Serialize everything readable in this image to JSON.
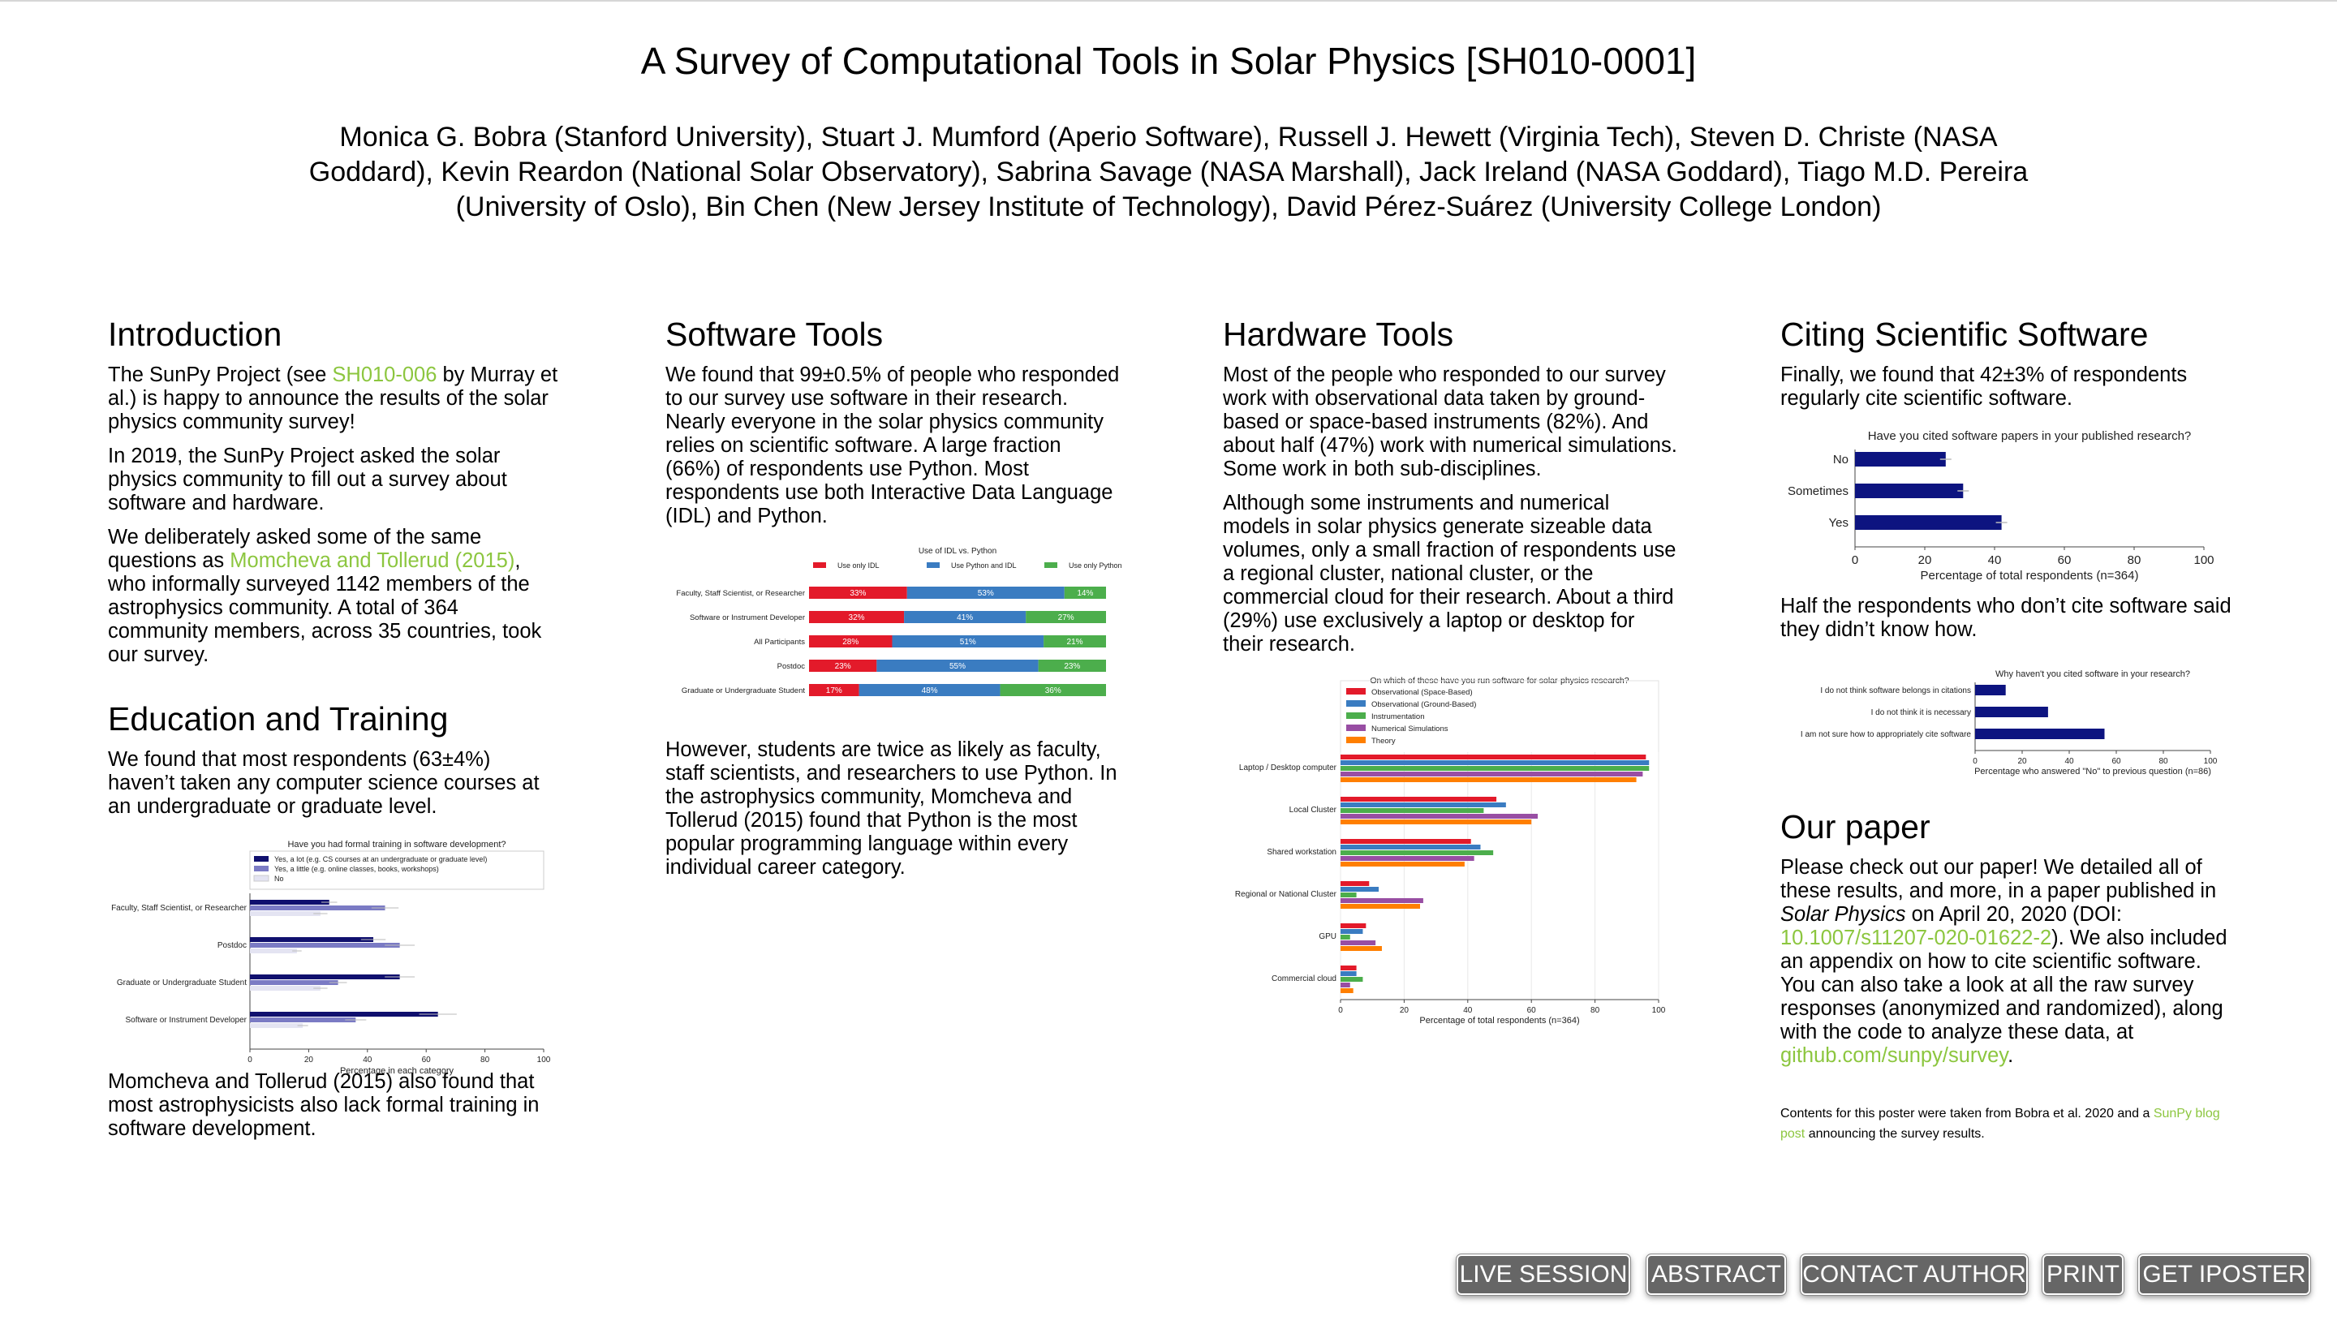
{
  "poster": {
    "title": "A Survey of Computational Tools in Solar Physics [SH010-0001]",
    "authors": "Monica G. Bobra (Stanford University), Stuart J. Mumford (Aperio Software), Russell J. Hewett (Virginia Tech), Steven D. Christe (NASA Goddard), Kevin Reardon (National Solar Observatory), Sabrina Savage (NASA Marshall), Jack Ireland (NASA Goddard), Tiago M.D. Pereira (University of Oslo), Bin Chen (New Jersey Institute of Technology), David Pérez-Suárez (University College London)"
  },
  "intro": {
    "heading": "Introduction",
    "p1_before": "The SunPy Project (see ",
    "p1_link": "SH010-006",
    "p1_after": " by Murray et al.) is happy to announce the results of the solar physics community survey!",
    "p2": "In 2019, the SunPy Project asked the solar physics community to fill out a survey about software and hardware.",
    "p3_before": "We deliberately asked some of the same questions as ",
    "p3_link": "Momcheva and Tollerud (2015)",
    "p3_after": ", who informally surveyed 1142 members of the astrophysics community. A total of 364 community members, across 35 countries, took our survey."
  },
  "education": {
    "heading": "Education and Training",
    "p1": "We found that most respondents (63±4%) haven’t taken any computer science courses at an undergraduate or graduate level.",
    "p2": "Momcheva and Tollerud (2015) also found that most astrophysicists also lack formal training in software development."
  },
  "software": {
    "heading": "Software Tools",
    "p1": "We found that 99±0.5% of people who responded to our survey use software in their research. Nearly everyone in the solar physics community relies on scientific software. A large fraction (66%) of respondents use Python. Most respondents use both Interactive Data Language (IDL) and Python.",
    "p2": "However, students are twice as likely as faculty, staff scientists, and researchers to use Python. In the astrophysics community, Momcheva and Tollerud (2015) found that Python is the most popular programming language within every individual career category."
  },
  "hardware": {
    "heading": "Hardware Tools",
    "p1": "Most of the people who responded to our survey work with observational data taken by ground-based or space-based instruments (82%). And about half (47%) work with numerical simulations. Some work in both sub-disciplines.",
    "p2": "Although some instruments and numerical models in solar physics generate sizeable data volumes, only a small fraction of respondents use a regional cluster, national cluster, or the commercial cloud for their research. About a third (29%) use exclusively a laptop or desktop for their research."
  },
  "citing": {
    "heading": "Citing Scientific Software",
    "p1": "Finally, we found that 42±3% of respondents regularly cite scientific software.",
    "p2": "Half the respondents who don’t cite software said they didn’t know how."
  },
  "paper": {
    "heading": "Our paper",
    "p1_a": "Please check out our paper! We detailed all of these results, and more, in a paper published in ",
    "p1_journal": "Solar Physics",
    "p1_b": " on April 20, 2020 (DOI: ",
    "p1_doi": "10.1007/s11207-020-01622-2",
    "p1_c": "). We also included an appendix on how to cite scientific software. You can also take a look at all the raw survey responses (anonymized and randomized), along with the code to analyze these data, at ",
    "p1_repo": "github.com/sunpy/survey",
    "p1_d": ".",
    "note_a": "Contents for this poster were taken from Bobra et al. 2020 and a ",
    "note_link": "SunPy blog post",
    "note_b": " announcing the survey results."
  },
  "buttons": [
    "LIVE SESSION",
    "ABSTRACT",
    "CONTACT AUTHOR",
    "PRINT",
    "GET IPOSTER"
  ],
  "chart_data": [
    {
      "id": "education",
      "type": "bar",
      "orientation": "horizontal",
      "title": "Have you had formal training in software development?",
      "xlabel": "Percentage in each category",
      "xlim": [
        0,
        100
      ],
      "xticks": [
        0,
        20,
        40,
        60,
        80,
        100
      ],
      "legend_position": "top",
      "categories": [
        "Faculty, Staff Scientist, or Researcher",
        "Postdoc",
        "Graduate or Undergraduate Student",
        "Software or Instrument Developer"
      ],
      "series": [
        {
          "name": "Yes, a lot (e.g. CS courses at an undergraduate or graduate level)",
          "color": "#10106e",
          "values": [
            27,
            42,
            51,
            64
          ]
        },
        {
          "name": "Yes, a little (e.g. online classes, books, workshops)",
          "color": "#7b7bc4",
          "values": [
            46,
            51,
            30,
            36
          ]
        },
        {
          "name": "No",
          "color": "#e4e4f2",
          "values": [
            24,
            16,
            24,
            18
          ]
        }
      ]
    },
    {
      "id": "software",
      "type": "bar",
      "orientation": "horizontal",
      "stacked": true,
      "title": "Use of IDL vs. Python",
      "legend_position": "top",
      "categories": [
        "Faculty, Staff Scientist, or Researcher",
        "Software or Instrument Developer",
        "All Participants",
        "Postdoc",
        "Graduate or Undergraduate Student"
      ],
      "series": [
        {
          "name": "Use only IDL",
          "color": "#e31a2a",
          "values": [
            33,
            32,
            28,
            23,
            17
          ]
        },
        {
          "name": "Use Python and IDL",
          "color": "#3a7cc1",
          "values": [
            53,
            41,
            51,
            55,
            48
          ]
        },
        {
          "name": "Use only Python",
          "color": "#4cae4c",
          "values": [
            14,
            27,
            21,
            23,
            36
          ]
        }
      ]
    },
    {
      "id": "hardware",
      "type": "bar",
      "orientation": "horizontal",
      "title": "On which of these have you run software for solar-physics research?",
      "xlabel": "Percentage of total respondents (n=364)",
      "xlim": [
        0,
        100
      ],
      "xticks": [
        0,
        20,
        40,
        60,
        80,
        100
      ],
      "legend_position": "top-left",
      "grid": true,
      "categories": [
        "Laptop / Desktop computer",
        "Local Cluster",
        "Shared workstation",
        "Regional or National Cluster",
        "GPU",
        "Commercial cloud"
      ],
      "series": [
        {
          "name": "Observational (Space-Based)",
          "color": "#e31a2a",
          "values": [
            96,
            49,
            41,
            9,
            8,
            5
          ]
        },
        {
          "name": "Observational (Ground-Based)",
          "color": "#3a7cc1",
          "values": [
            97,
            52,
            44,
            12,
            7,
            5
          ]
        },
        {
          "name": "Instrumentation",
          "color": "#4cae4c",
          "values": [
            97,
            45,
            48,
            5,
            3,
            7
          ]
        },
        {
          "name": "Numerical Simulations",
          "color": "#984ea3",
          "values": [
            95,
            62,
            42,
            26,
            11,
            3
          ]
        },
        {
          "name": "Theory",
          "color": "#ff7f00",
          "values": [
            93,
            60,
            39,
            25,
            13,
            4
          ]
        }
      ]
    },
    {
      "id": "citing",
      "type": "bar",
      "orientation": "horizontal",
      "title": "Have you cited software papers in your published research?",
      "xlabel": "Percentage of total respondents (n=364)",
      "xlim": [
        0,
        100
      ],
      "xticks": [
        0,
        20,
        40,
        60,
        80,
        100
      ],
      "color": "#0d1480",
      "categories": [
        "No",
        "Sometimes",
        "Yes"
      ],
      "values": [
        26,
        31,
        42
      ]
    },
    {
      "id": "why-not",
      "type": "bar",
      "orientation": "horizontal",
      "title": "Why haven't you cited software in your research?",
      "xlabel": "Percentage who answered \"No\" to previous question (n=86)",
      "xlim": [
        0,
        100
      ],
      "xticks": [
        0,
        20,
        40,
        60,
        80,
        100
      ],
      "color": "#0d1480",
      "categories": [
        "I do not think software belongs in citations",
        "I do not think it is necessary",
        "I am not sure how to appropriately cite software"
      ],
      "values": [
        13,
        31,
        55
      ]
    }
  ]
}
